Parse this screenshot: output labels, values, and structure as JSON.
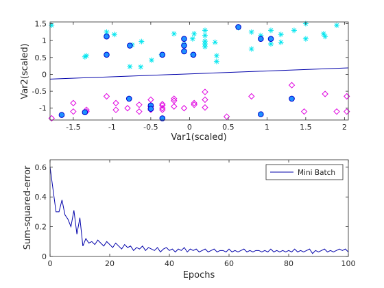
{
  "chart_data": [
    {
      "type": "scatter",
      "xlabel": "Var1(scaled)",
      "ylabel": "Var2(scaled)",
      "xlim": [
        -1.8,
        2.05
      ],
      "ylim": [
        -1.35,
        1.55
      ],
      "xticks": [
        -1.5,
        -1,
        -0.5,
        0,
        0.5,
        1,
        1.5,
        2
      ],
      "xtick_labels": [
        "-1.5",
        "-1",
        "-0.5",
        "0",
        "0.5",
        "1",
        "1.5",
        "2"
      ],
      "yticks": [
        -1,
        -0.5,
        0,
        0.5,
        1,
        1.5
      ],
      "ytick_labels": [
        "-1",
        "-0.5",
        "0",
        "0.5",
        "1",
        "1.5"
      ],
      "grid": false,
      "colors": {
        "stars": "#00e5ee",
        "diamonds": "#e000e0",
        "circles_edge": "#0000cc",
        "circles_fill": "#1e90ff",
        "line": "#0000aa"
      },
      "series": [
        {
          "marker": "star",
          "points": [
            [
              -1.78,
              1.45
            ],
            [
              -1.35,
              0.52
            ],
            [
              -1.33,
              0.55
            ],
            [
              -1.07,
              1.25
            ],
            [
              -1.07,
              1.12
            ],
            [
              -0.97,
              1.18
            ],
            [
              -0.77,
              0.23
            ],
            [
              -0.74,
              0.87
            ],
            [
              -0.63,
              0.22
            ],
            [
              -0.62,
              0.97
            ],
            [
              -0.49,
              0.42
            ],
            [
              -0.36,
              0.58
            ],
            [
              -0.2,
              1.2
            ],
            [
              -0.07,
              0.9
            ],
            [
              -0.07,
              1.05
            ],
            [
              0.04,
              0.58
            ],
            [
              0.04,
              1.05
            ],
            [
              0.06,
              1.2
            ],
            [
              0.2,
              0.82
            ],
            [
              0.2,
              0.9
            ],
            [
              0.2,
              0.98
            ],
            [
              0.2,
              1.15
            ],
            [
              0.2,
              1.3
            ],
            [
              0.33,
              0.95
            ],
            [
              0.35,
              0.38
            ],
            [
              0.35,
              0.55
            ],
            [
              0.63,
              1.38
            ],
            [
              0.8,
              0.75
            ],
            [
              0.8,
              1.25
            ],
            [
              0.92,
              1.15
            ],
            [
              0.92,
              1.05
            ],
            [
              1.05,
              0.9
            ],
            [
              1.05,
              1.3
            ],
            [
              1.18,
              0.95
            ],
            [
              1.18,
              1.18
            ],
            [
              1.35,
              1.3
            ],
            [
              1.5,
              1.05
            ],
            [
              1.5,
              1.5
            ],
            [
              1.73,
              1.2
            ],
            [
              1.75,
              1.12
            ],
            [
              1.9,
              1.45
            ]
          ]
        },
        {
          "marker": "diamond",
          "points": [
            [
              -1.78,
              -1.3
            ],
            [
              -1.5,
              -0.85
            ],
            [
              -1.5,
              -1.1
            ],
            [
              -1.33,
              -1.05
            ],
            [
              -1.33,
              -1.1
            ],
            [
              -1.07,
              -0.65
            ],
            [
              -0.95,
              -0.85
            ],
            [
              -0.95,
              -1.05
            ],
            [
              -0.8,
              -1.0
            ],
            [
              -0.65,
              -0.9
            ],
            [
              -0.65,
              -1.1
            ],
            [
              -0.5,
              -0.75
            ],
            [
              -0.5,
              -0.95
            ],
            [
              -0.5,
              -1.0
            ],
            [
              -0.5,
              -1.05
            ],
            [
              -0.35,
              -0.88
            ],
            [
              -0.35,
              -0.92
            ],
            [
              -0.35,
              -1.0
            ],
            [
              -0.35,
              -1.05
            ],
            [
              -0.2,
              -0.72
            ],
            [
              -0.2,
              -0.78
            ],
            [
              -0.2,
              -0.95
            ],
            [
              -0.07,
              -1.0
            ],
            [
              0.06,
              -0.85
            ],
            [
              0.06,
              -0.9
            ],
            [
              0.2,
              -0.52
            ],
            [
              0.2,
              -0.75
            ],
            [
              0.2,
              -0.98
            ],
            [
              0.48,
              -1.25
            ],
            [
              0.8,
              -0.65
            ],
            [
              1.32,
              -0.32
            ],
            [
              1.48,
              -1.1
            ],
            [
              1.75,
              -0.58
            ],
            [
              1.9,
              -1.1
            ],
            [
              2.03,
              -0.65
            ],
            [
              2.03,
              -1.1
            ]
          ]
        },
        {
          "marker": "circle",
          "points": [
            [
              -1.65,
              -1.2
            ],
            [
              -1.35,
              -1.12
            ],
            [
              -1.07,
              1.12
            ],
            [
              -1.07,
              0.58
            ],
            [
              -0.77,
              0.85
            ],
            [
              -0.78,
              -0.72
            ],
            [
              -0.5,
              -0.92
            ],
            [
              -0.5,
              -1.02
            ],
            [
              -0.35,
              0.58
            ],
            [
              -0.35,
              -1.3
            ],
            [
              -0.07,
              1.05
            ],
            [
              -0.07,
              0.85
            ],
            [
              -0.07,
              0.68
            ],
            [
              0.05,
              0.58
            ],
            [
              0.63,
              1.4
            ],
            [
              0.92,
              1.05
            ],
            [
              0.92,
              -1.18
            ],
            [
              1.05,
              1.05
            ],
            [
              1.32,
              -0.72
            ]
          ]
        }
      ],
      "decision_line": {
        "x": [
          -1.8,
          2.05
        ],
        "y": [
          -0.14,
          0.19
        ]
      }
    },
    {
      "type": "line",
      "xlabel": "Epochs",
      "ylabel": "Sum-squared-error",
      "xlim": [
        0,
        100
      ],
      "ylim": [
        0,
        0.65
      ],
      "xticks": [
        0,
        20,
        40,
        60,
        80,
        100
      ],
      "xtick_labels": [
        "0",
        "20",
        "40",
        "60",
        "80",
        "100"
      ],
      "yticks": [
        0,
        0.2,
        0.4,
        0.6
      ],
      "ytick_labels": [
        "0",
        "0.2",
        "0.4",
        "0.6"
      ],
      "grid": false,
      "legend_position": "top-right",
      "series": [
        {
          "name": "Mini Batch",
          "color": "#0000aa",
          "x": [
            0,
            1,
            2,
            3,
            4,
            5,
            6,
            7,
            8,
            9,
            10,
            11,
            12,
            13,
            14,
            15,
            16,
            17,
            18,
            19,
            20,
            21,
            22,
            23,
            24,
            25,
            26,
            27,
            28,
            29,
            30,
            31,
            32,
            33,
            34,
            35,
            36,
            37,
            38,
            39,
            40,
            41,
            42,
            43,
            44,
            45,
            46,
            47,
            48,
            49,
            50,
            51,
            52,
            53,
            54,
            55,
            56,
            57,
            58,
            59,
            60,
            61,
            62,
            63,
            64,
            65,
            66,
            67,
            68,
            69,
            70,
            71,
            72,
            73,
            74,
            75,
            76,
            77,
            78,
            79,
            80,
            81,
            82,
            83,
            84,
            85,
            86,
            87,
            88,
            89,
            90,
            91,
            92,
            93,
            94,
            95,
            96,
            97,
            98,
            99,
            100
          ],
          "y": [
            0.6,
            0.45,
            0.3,
            0.3,
            0.38,
            0.28,
            0.25,
            0.2,
            0.31,
            0.15,
            0.26,
            0.07,
            0.12,
            0.09,
            0.1,
            0.08,
            0.11,
            0.09,
            0.07,
            0.1,
            0.08,
            0.06,
            0.09,
            0.07,
            0.05,
            0.08,
            0.06,
            0.07,
            0.04,
            0.06,
            0.05,
            0.07,
            0.04,
            0.06,
            0.05,
            0.04,
            0.06,
            0.03,
            0.05,
            0.06,
            0.04,
            0.05,
            0.03,
            0.05,
            0.04,
            0.06,
            0.03,
            0.05,
            0.04,
            0.05,
            0.03,
            0.04,
            0.05,
            0.03,
            0.04,
            0.05,
            0.03,
            0.04,
            0.04,
            0.03,
            0.05,
            0.03,
            0.04,
            0.03,
            0.04,
            0.05,
            0.03,
            0.04,
            0.03,
            0.04,
            0.04,
            0.03,
            0.04,
            0.03,
            0.05,
            0.03,
            0.04,
            0.03,
            0.04,
            0.03,
            0.04,
            0.03,
            0.05,
            0.03,
            0.04,
            0.03,
            0.04,
            0.05,
            0.02,
            0.04,
            0.03,
            0.04,
            0.05,
            0.03,
            0.04,
            0.03,
            0.04,
            0.05,
            0.04,
            0.05,
            0.03
          ]
        }
      ]
    }
  ]
}
